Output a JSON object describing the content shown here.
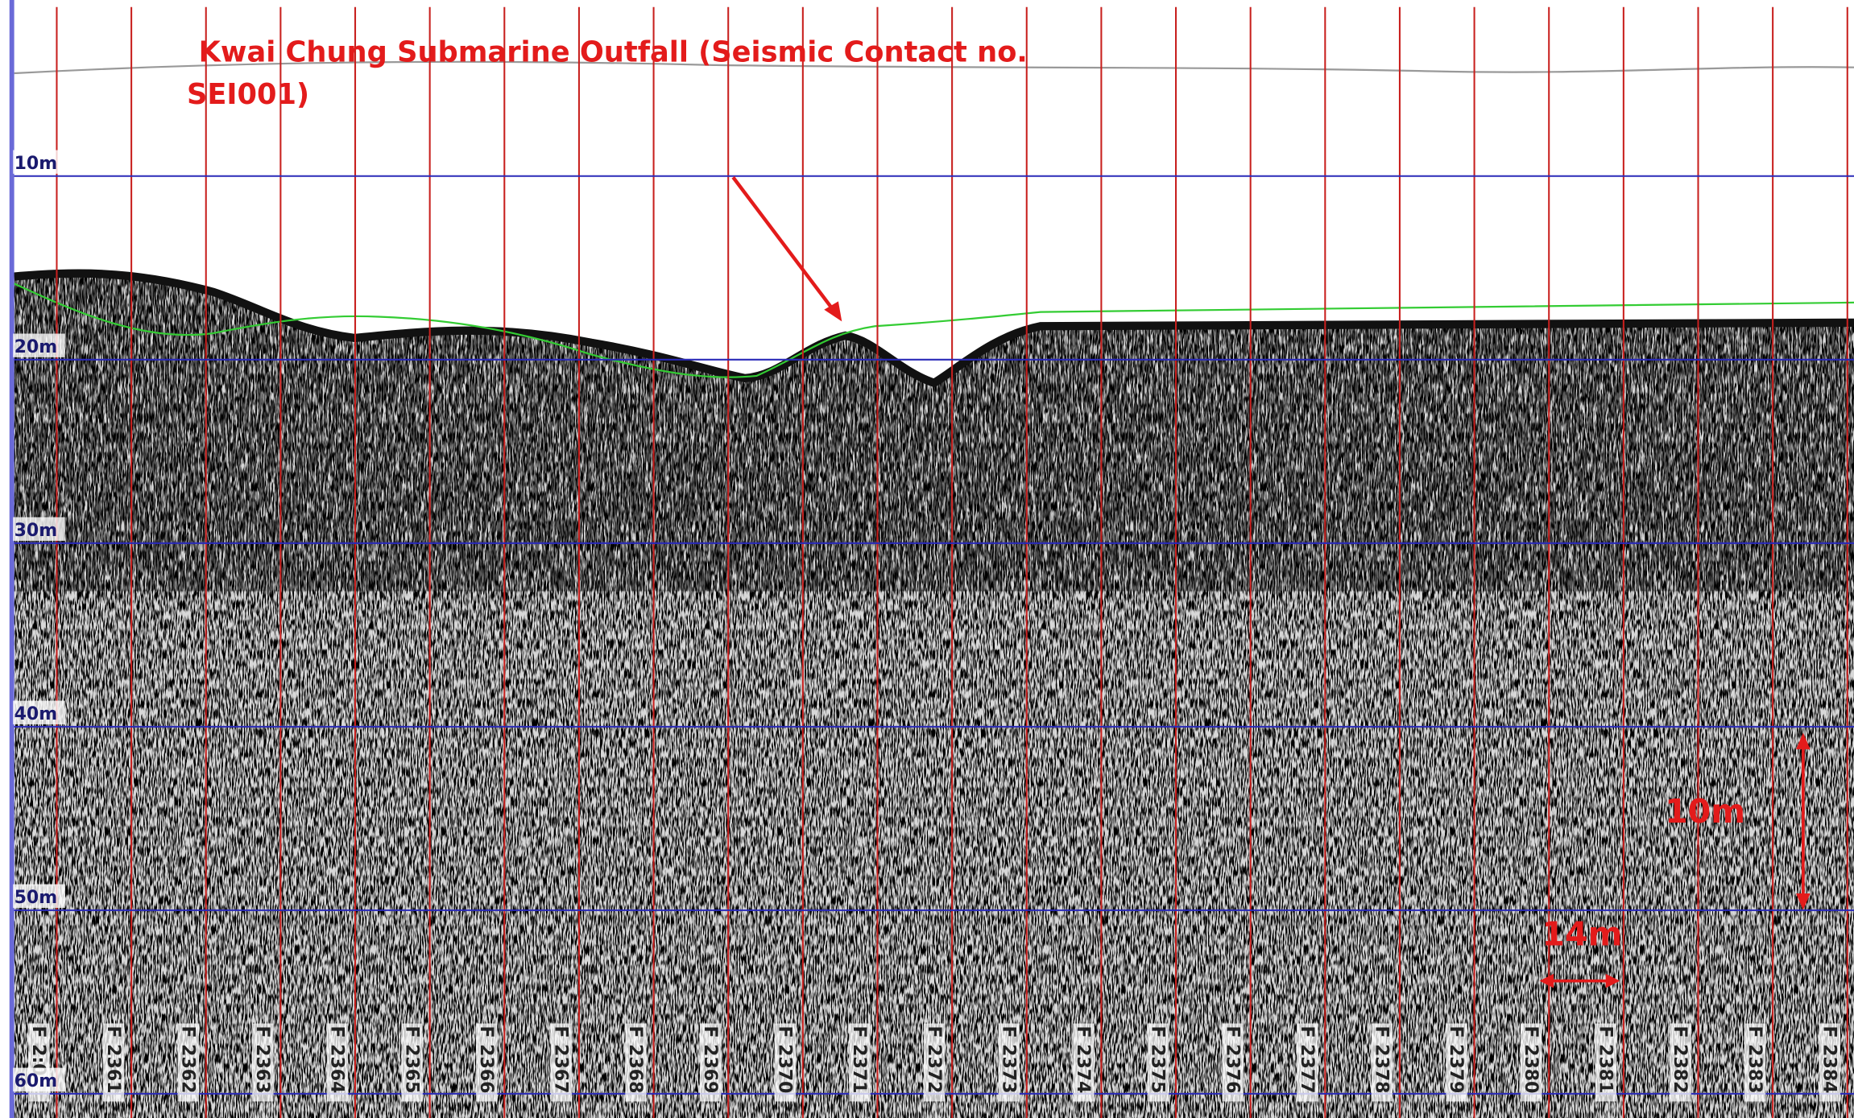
{
  "title": [
    "Kwai Chung Submarine Outfall (Seismic Contact no.",
    "SEI001)"
  ],
  "depth_labels": [
    "10m",
    "20m",
    "30m",
    "40m",
    "50m",
    "60m"
  ],
  "fix_labels": [
    "F 2:0",
    "F 2361",
    "F 2362",
    "F 2363",
    "F 2364",
    "F 2365",
    "F 2366",
    "F 2367",
    "F 2368",
    "F 2369",
    "F 2370",
    "F 2371",
    "F 2372",
    "F 2373",
    "F 2374",
    "F 2375",
    "F 2376",
    "F 2377",
    "F 2378",
    "F 2379",
    "F 2380",
    "F 2381",
    "F 2382",
    "F 2383",
    "F 2384"
  ],
  "scale_vertical": "10m",
  "scale_horizontal": "14m"
}
